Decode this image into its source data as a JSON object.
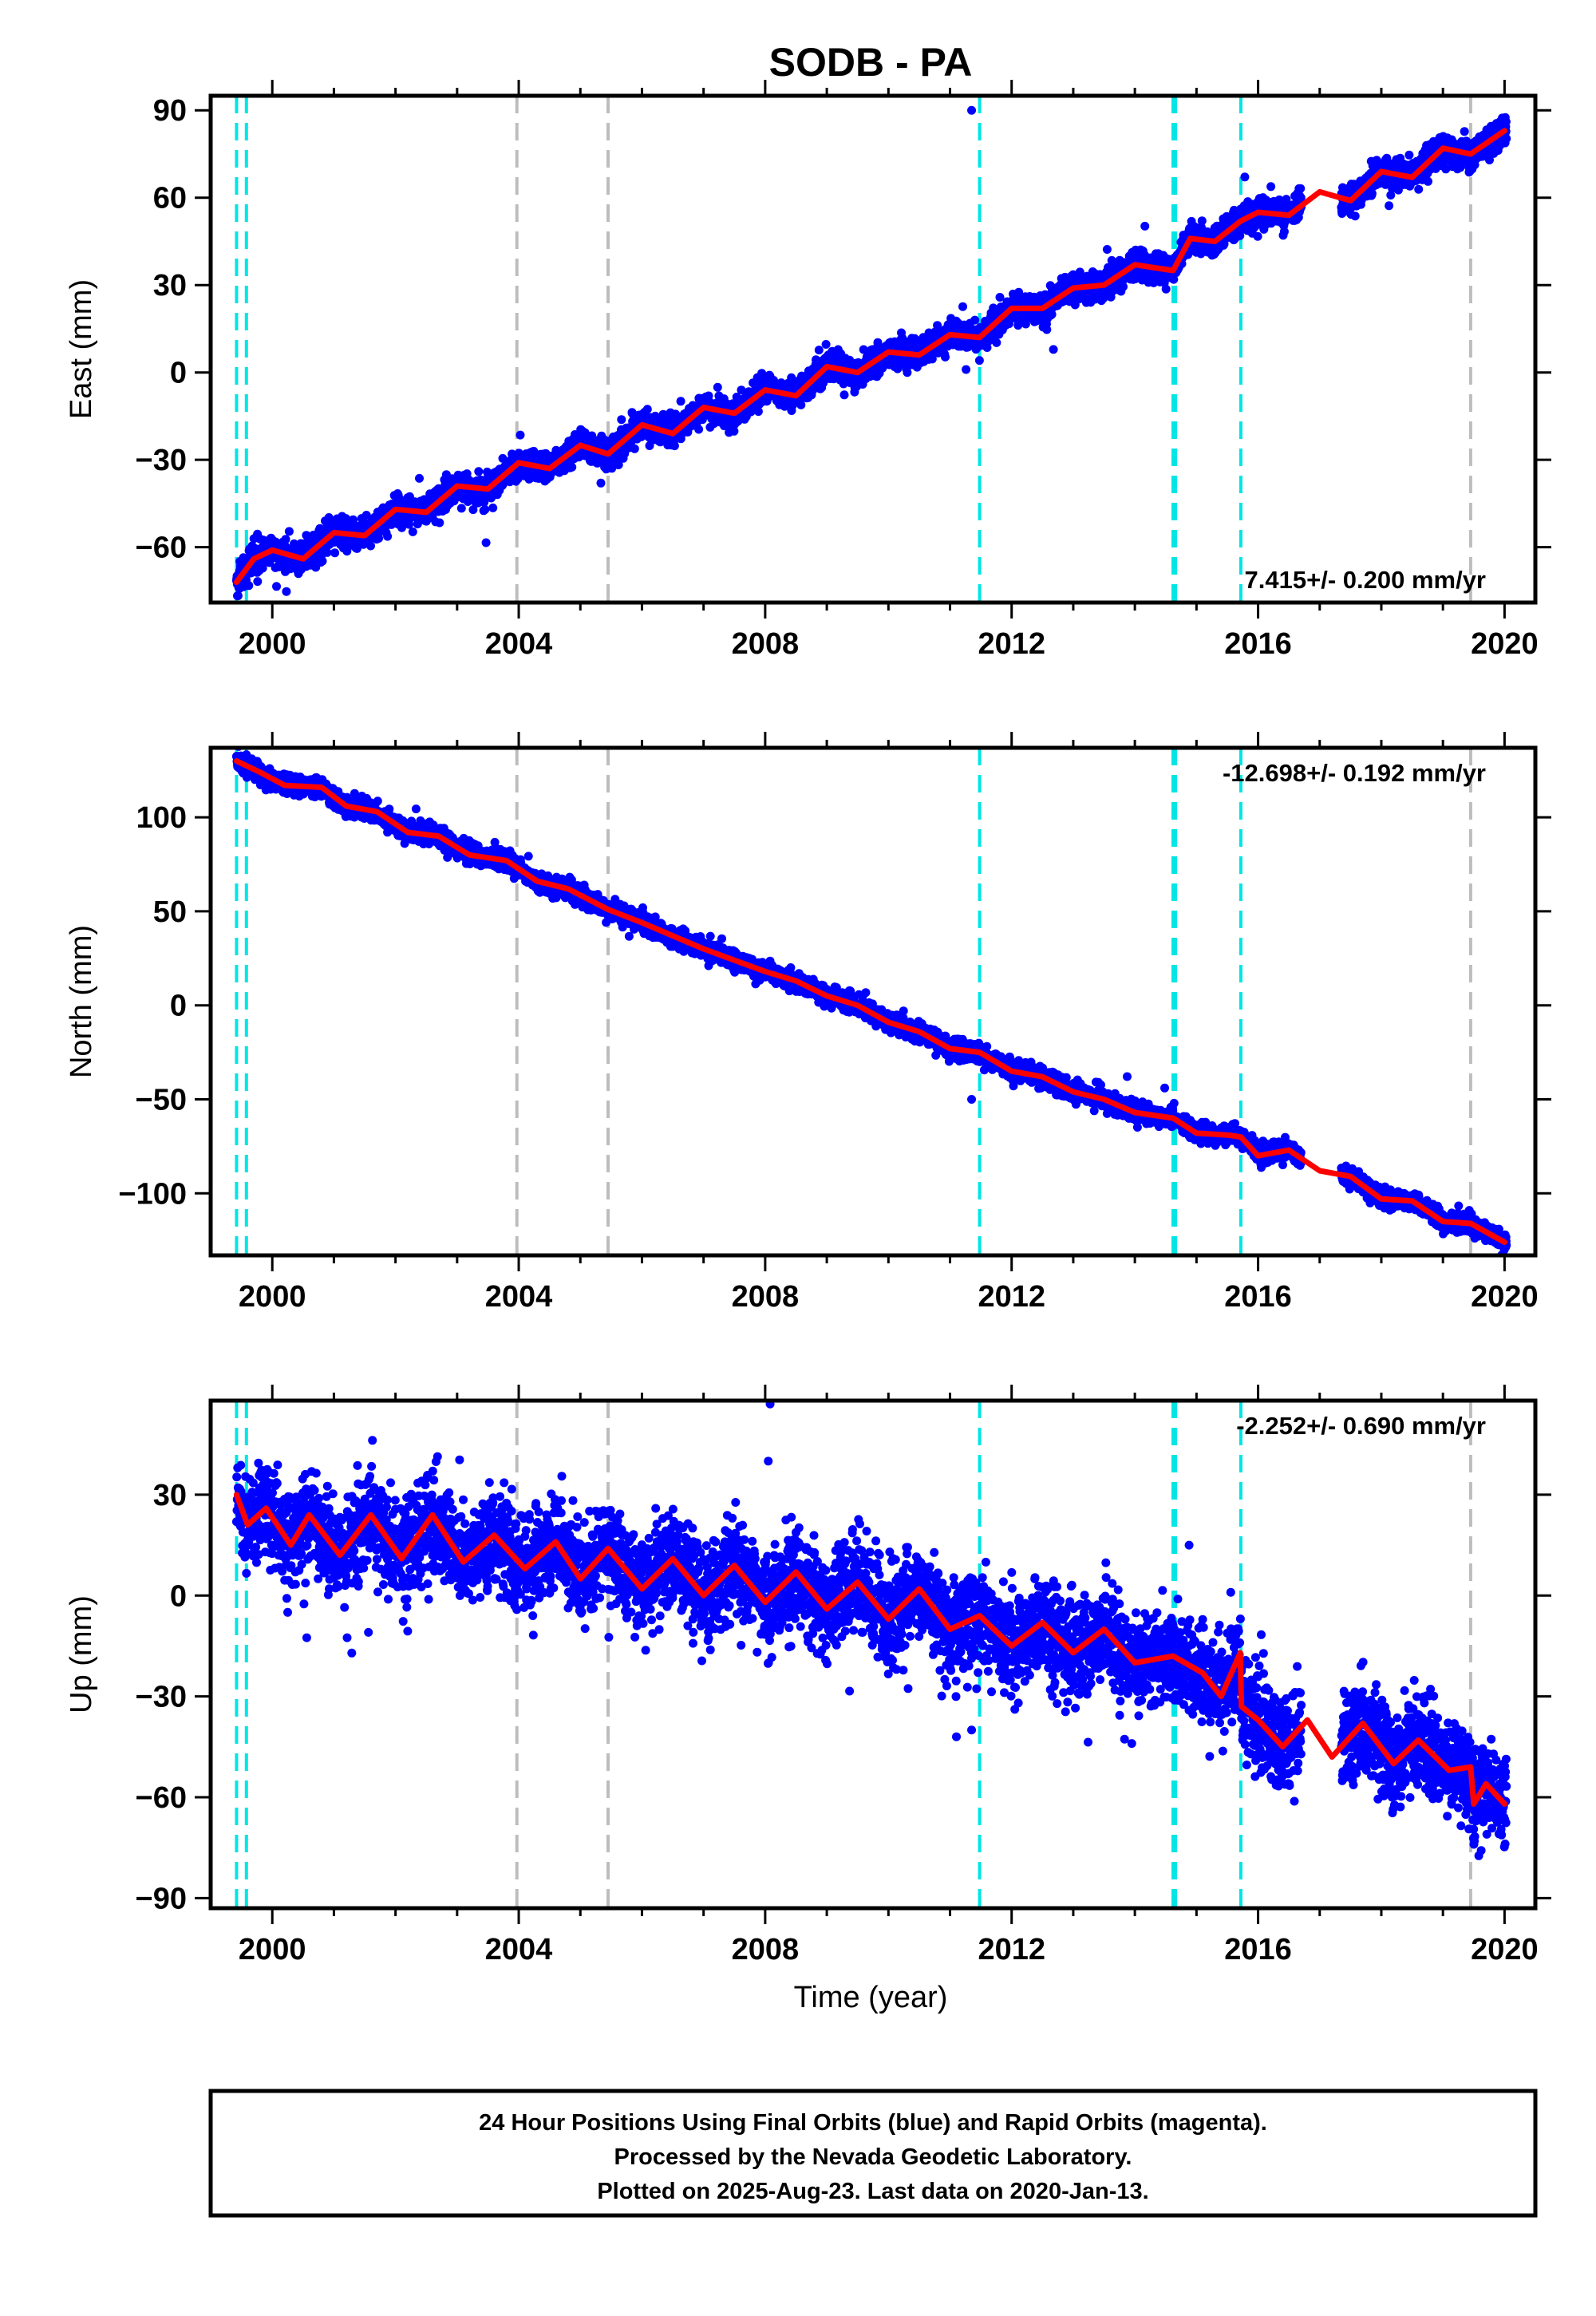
{
  "figure": {
    "title": "SODB - PA",
    "xlabel": "Time (year)",
    "footer": [
      "24 Hour Positions Using Final Orbits (blue) and Rapid Orbits (magenta).",
      "Processed by the Nevada Geodetic Laboratory.",
      "Plotted on 2025-Aug-23. Last data on 2020-Jan-13."
    ]
  },
  "colors": {
    "points": "#0000ff",
    "model": "#ff0000",
    "equipment_line": "#00e5e5",
    "event_line": "#bdbdbd",
    "frame": "#000000"
  },
  "chart_data": [
    {
      "type": "scatter",
      "component": "east",
      "ylabel": "East (mm)",
      "rate_label": "7.415+/- 0.200 mm/yr",
      "xlim": [
        1999.0,
        2020.5
      ],
      "ylim": [
        -79,
        95
      ],
      "xticks": [
        2000,
        2004,
        2008,
        2012,
        2016,
        2020
      ],
      "yticks": [
        -60,
        -30,
        0,
        30,
        60,
        90
      ],
      "cyan_lines": [
        1999.42,
        1999.58,
        2011.48,
        2014.62,
        2014.66,
        2015.72
      ],
      "gray_lines": [
        2003.97,
        2005.45,
        2019.45
      ],
      "model_keypoints": [
        [
          1999.42,
          -72
        ],
        [
          1999.7,
          -64
        ],
        [
          2000.0,
          -61
        ],
        [
          2000.5,
          -64
        ],
        [
          2001.0,
          -55
        ],
        [
          2001.5,
          -56
        ],
        [
          2002.0,
          -47
        ],
        [
          2002.5,
          -48
        ],
        [
          2003.0,
          -39
        ],
        [
          2003.5,
          -40
        ],
        [
          2004.0,
          -31
        ],
        [
          2004.5,
          -33
        ],
        [
          2005.0,
          -25
        ],
        [
          2005.45,
          -28
        ],
        [
          2006.0,
          -18
        ],
        [
          2006.5,
          -21
        ],
        [
          2007.0,
          -12
        ],
        [
          2007.5,
          -14
        ],
        [
          2008.0,
          -6
        ],
        [
          2008.5,
          -8
        ],
        [
          2009.0,
          2
        ],
        [
          2009.5,
          0
        ],
        [
          2010.0,
          7
        ],
        [
          2010.5,
          6
        ],
        [
          2011.0,
          13
        ],
        [
          2011.48,
          12
        ],
        [
          2012.0,
          22
        ],
        [
          2012.5,
          22
        ],
        [
          2013.0,
          29
        ],
        [
          2013.5,
          30
        ],
        [
          2014.0,
          37
        ],
        [
          2014.62,
          35
        ],
        [
          2014.9,
          46
        ],
        [
          2015.3,
          45
        ],
        [
          2015.72,
          52
        ],
        [
          2016.0,
          55
        ],
        [
          2016.5,
          54
        ],
        [
          2017.0,
          62
        ],
        [
          2017.5,
          59
        ],
        [
          2018.0,
          69
        ],
        [
          2018.5,
          67
        ],
        [
          2019.0,
          77
        ],
        [
          2019.45,
          75
        ],
        [
          2020.0,
          83
        ]
      ],
      "outliers": [
        [
          2011.35,
          90
        ]
      ],
      "scatter_spread": 2.4,
      "data_end": 2020.03
    },
    {
      "type": "scatter",
      "component": "north",
      "ylabel": "North (mm)",
      "rate_label": "-12.698+/- 0.192 mm/yr",
      "xlim": [
        1999.0,
        2020.5
      ],
      "ylim": [
        -133,
        137
      ],
      "xticks": [
        2000,
        2004,
        2008,
        2012,
        2016,
        2020
      ],
      "yticks": [
        -100,
        -50,
        0,
        50,
        100
      ],
      "cyan_lines": [
        1999.42,
        1999.58,
        2011.48,
        2014.62,
        2014.66,
        2015.72
      ],
      "gray_lines": [
        2003.97,
        2005.45,
        2019.45
      ],
      "model_keypoints": [
        [
          1999.42,
          130
        ],
        [
          1999.8,
          124
        ],
        [
          2000.2,
          117
        ],
        [
          2000.8,
          116
        ],
        [
          2001.2,
          106
        ],
        [
          2001.7,
          103
        ],
        [
          2002.2,
          92
        ],
        [
          2002.7,
          90
        ],
        [
          2003.2,
          80
        ],
        [
          2003.8,
          77
        ],
        [
          2004.3,
          66
        ],
        [
          2004.8,
          62
        ],
        [
          2005.45,
          51
        ],
        [
          2006.0,
          44
        ],
        [
          2006.5,
          37
        ],
        [
          2007.0,
          30
        ],
        [
          2007.5,
          24
        ],
        [
          2008.0,
          18
        ],
        [
          2008.5,
          13
        ],
        [
          2009.0,
          5
        ],
        [
          2009.5,
          0
        ],
        [
          2010.0,
          -9
        ],
        [
          2010.5,
          -14
        ],
        [
          2011.0,
          -23
        ],
        [
          2011.48,
          -25
        ],
        [
          2012.0,
          -35
        ],
        [
          2012.5,
          -38
        ],
        [
          2013.0,
          -46
        ],
        [
          2013.5,
          -50
        ],
        [
          2014.0,
          -57
        ],
        [
          2014.62,
          -60
        ],
        [
          2015.0,
          -68
        ],
        [
          2015.5,
          -69
        ],
        [
          2015.72,
          -70
        ],
        [
          2016.0,
          -80
        ],
        [
          2016.5,
          -77
        ],
        [
          2017.0,
          -88
        ],
        [
          2017.5,
          -91
        ],
        [
          2018.0,
          -103
        ],
        [
          2018.5,
          -104
        ],
        [
          2019.0,
          -115
        ],
        [
          2019.45,
          -116
        ],
        [
          2020.0,
          -126
        ]
      ],
      "outliers": [
        [
          2011.35,
          -50
        ]
      ],
      "scatter_spread": 2.4,
      "data_end": 2020.03
    },
    {
      "type": "scatter",
      "component": "up",
      "ylabel": "Up (mm)",
      "rate_label": "-2.252+/- 0.690 mm/yr",
      "xlim": [
        1999.0,
        2020.5
      ],
      "ylim": [
        -93,
        58
      ],
      "xticks": [
        2000,
        2004,
        2008,
        2012,
        2016,
        2020
      ],
      "yticks": [
        -90,
        -60,
        -30,
        0,
        30
      ],
      "cyan_lines": [
        1999.42,
        1999.58,
        2011.48,
        2014.62,
        2014.66,
        2015.72
      ],
      "gray_lines": [
        2003.97,
        2005.45,
        2019.45
      ],
      "model_keypoints": [
        [
          1999.42,
          30
        ],
        [
          1999.6,
          21
        ],
        [
          1999.9,
          26
        ],
        [
          2000.3,
          15
        ],
        [
          2000.6,
          24
        ],
        [
          2001.1,
          12
        ],
        [
          2001.6,
          24
        ],
        [
          2002.1,
          11
        ],
        [
          2002.6,
          24
        ],
        [
          2003.1,
          10
        ],
        [
          2003.6,
          18
        ],
        [
          2004.1,
          8
        ],
        [
          2004.6,
          16
        ],
        [
          2005.0,
          5
        ],
        [
          2005.45,
          14
        ],
        [
          2006.0,
          2
        ],
        [
          2006.5,
          11
        ],
        [
          2007.0,
          0
        ],
        [
          2007.5,
          9
        ],
        [
          2008.0,
          -2
        ],
        [
          2008.5,
          7
        ],
        [
          2009.0,
          -4
        ],
        [
          2009.5,
          4
        ],
        [
          2010.0,
          -7
        ],
        [
          2010.5,
          2
        ],
        [
          2011.0,
          -10
        ],
        [
          2011.48,
          -6
        ],
        [
          2012.0,
          -15
        ],
        [
          2012.5,
          -8
        ],
        [
          2013.0,
          -17
        ],
        [
          2013.5,
          -10
        ],
        [
          2014.0,
          -20
        ],
        [
          2014.62,
          -18
        ],
        [
          2015.1,
          -23
        ],
        [
          2015.4,
          -30
        ],
        [
          2015.71,
          -17
        ],
        [
          2015.73,
          -33
        ],
        [
          2016.0,
          -37
        ],
        [
          2016.4,
          -45
        ],
        [
          2016.8,
          -37
        ],
        [
          2017.2,
          -48
        ],
        [
          2017.7,
          -38
        ],
        [
          2018.2,
          -50
        ],
        [
          2018.6,
          -43
        ],
        [
          2019.1,
          -52
        ],
        [
          2019.45,
          -51
        ],
        [
          2019.5,
          -62
        ],
        [
          2019.7,
          -56
        ],
        [
          2020.0,
          -62
        ]
      ],
      "outliers": [
        [
          2008.08,
          57
        ],
        [
          2008.05,
          40
        ],
        [
          2011.35,
          -40
        ],
        [
          2013.95,
          -44
        ],
        [
          2014.88,
          15
        ],
        [
          2015.55,
          -32
        ]
      ],
      "scatter_spread": 7,
      "data_end": 2020.03
    }
  ]
}
